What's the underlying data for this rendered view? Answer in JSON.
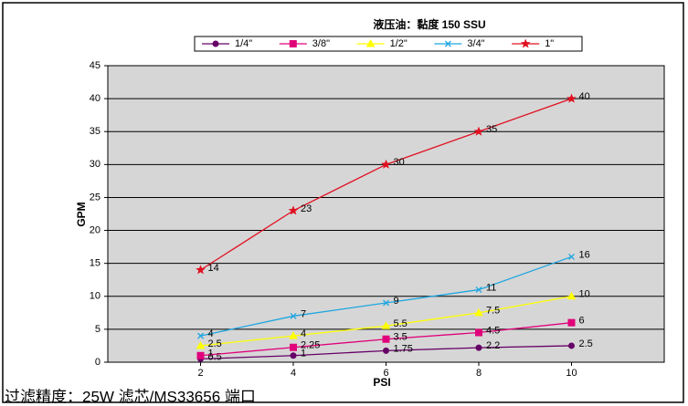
{
  "chart_data": {
    "type": "line",
    "title": "液压油：黏度 150 SSU",
    "x_label": "PSI",
    "y_label": "GPM",
    "footer": "过滤精度：25W 滤芯/MS33656 端口",
    "x": [
      2,
      4,
      6,
      8,
      10
    ],
    "xlim": [
      0,
      12
    ],
    "xticks": [
      2,
      4,
      6,
      8,
      10
    ],
    "ylim": [
      0,
      45
    ],
    "yticks": [
      0,
      5,
      10,
      15,
      20,
      25,
      30,
      35,
      40,
      45
    ],
    "grid": true,
    "legend": "top",
    "series": [
      {
        "name": "1/4\"",
        "color": "#660066",
        "marker": "circle",
        "values": [
          0.5,
          1,
          1.75,
          2.2,
          2.5
        ]
      },
      {
        "name": "3/8\"",
        "color": "#e0007a",
        "marker": "square",
        "values": [
          1,
          2.25,
          3.5,
          4.5,
          6
        ]
      },
      {
        "name": "1/2\"",
        "color": "#ffff00",
        "marker": "triangle",
        "values": [
          2.5,
          4,
          5.5,
          7.5,
          10
        ]
      },
      {
        "name": "3/4\"",
        "color": "#1ea6e0",
        "marker": "x",
        "values": [
          4,
          7,
          9,
          11,
          16
        ]
      },
      {
        "name": "1\"",
        "color": "#e01020",
        "marker": "star",
        "values": [
          14,
          23,
          30,
          35,
          40
        ]
      }
    ]
  }
}
